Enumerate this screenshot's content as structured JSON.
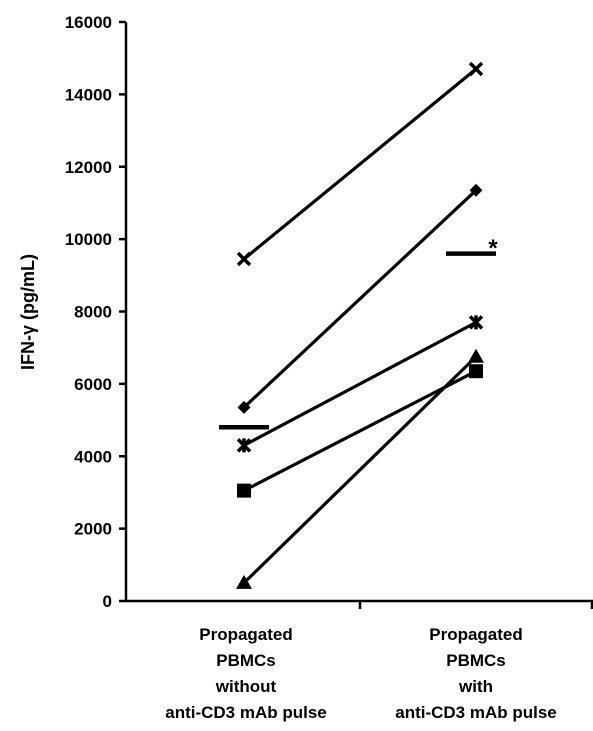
{
  "chart_data": {
    "type": "line",
    "ylabel": "IFN-γ (pg/mL)",
    "ylim": [
      0,
      16000
    ],
    "yticks": [
      0,
      2000,
      4000,
      6000,
      8000,
      10000,
      12000,
      14000,
      16000
    ],
    "categories": [
      [
        "Propagated",
        "PBMCs",
        "without",
        "anti-CD3 mAb pulse"
      ],
      [
        "Propagated",
        "PBMCs",
        "with",
        "anti-CD3 mAb pulse"
      ]
    ],
    "series": [
      {
        "marker": "x",
        "values": [
          9450,
          14700
        ]
      },
      {
        "marker": "diamond",
        "values": [
          5350,
          11350
        ]
      },
      {
        "marker": "asterisk",
        "values": [
          4300,
          7700
        ]
      },
      {
        "marker": "square",
        "values": [
          3050,
          6350
        ]
      },
      {
        "marker": "triangle",
        "values": [
          500,
          6750
        ]
      }
    ],
    "means": [
      4800,
      9600
    ],
    "annotation": "*",
    "grid": false,
    "colors": {
      "line": "#000000",
      "marker": "#000000"
    }
  }
}
